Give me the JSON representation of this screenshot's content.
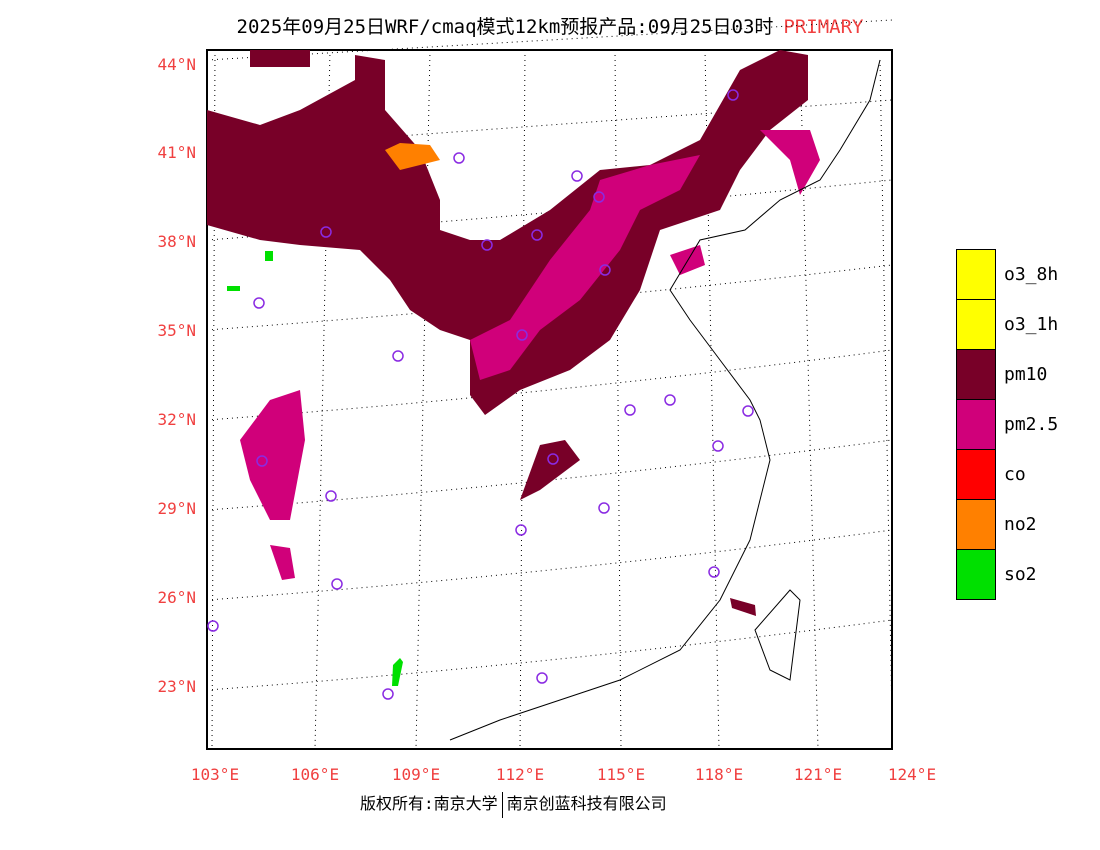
{
  "title": {
    "text": "2025年09月25日WRF/cmaq模式12km预报产品:09月25日03时",
    "tag": "PRIMARY"
  },
  "lat_labels": [
    "44°N",
    "41°N",
    "38°N",
    "35°N",
    "32°N",
    "29°N",
    "26°N",
    "23°N"
  ],
  "lon_labels": [
    "103°E",
    "106°E",
    "109°E",
    "112°E",
    "115°E",
    "118°E",
    "121°E",
    "124°E"
  ],
  "legend": [
    {
      "label": "o3_8h",
      "color": "#ffff00"
    },
    {
      "label": "o3_1h",
      "color": "#ffff00"
    },
    {
      "label": "pm10",
      "color": "#780028"
    },
    {
      "label": "pm2.5",
      "color": "#d0007a"
    },
    {
      "label": "co",
      "color": "#ff0000"
    },
    {
      "label": "no2",
      "color": "#ff8000"
    },
    {
      "label": "so2",
      "color": "#00e000"
    }
  ],
  "copyright": {
    "left": "版权所有:南京大学",
    "right": "南京创蓝科技有限公司"
  }
}
